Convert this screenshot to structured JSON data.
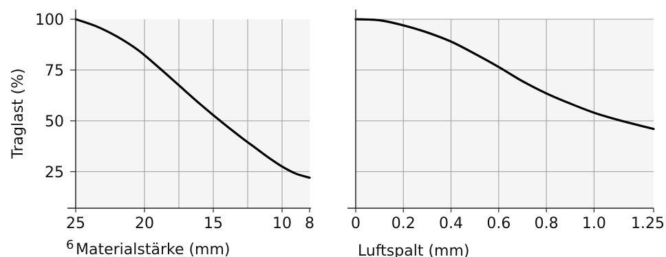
{
  "colors": {
    "plot_bg": "#f5f5f5",
    "grid": "#9a9a9a",
    "axis": "#222222",
    "curve": "#000000",
    "text": "#111111"
  },
  "ylabel": "Traglast (%)",
  "stray_mark": "6",
  "chart_data": [
    {
      "type": "line",
      "title": "",
      "xlabel": "Materialstärke (mm)",
      "ylabel": "Traglast (%)",
      "x_reversed": true,
      "xlim": [
        25,
        8
      ],
      "ylim": [
        7,
        100
      ],
      "xticks": [
        25,
        20,
        15,
        10,
        8
      ],
      "xtick_labels": [
        "25",
        "20",
        "15",
        "10",
        "8"
      ],
      "yticks": [
        25,
        50,
        75,
        100
      ],
      "ytick_labels": [
        "25",
        "50",
        "75",
        "100"
      ],
      "grid": true,
      "series": [
        {
          "x": [
            25,
            23.5,
            22,
            20.5,
            19,
            17.5,
            16,
            14.5,
            13,
            12,
            11,
            10,
            9,
            8
          ],
          "y": [
            100,
            96.5,
            91.5,
            85,
            76.5,
            67.5,
            58.5,
            50,
            42,
            37,
            32,
            27.5,
            24,
            22
          ]
        }
      ]
    },
    {
      "type": "line",
      "title": "",
      "xlabel": "Luftspalt (mm)",
      "ylabel": "",
      "xlim": [
        0,
        1.25
      ],
      "ylim": [
        7,
        100
      ],
      "xticks": [
        0,
        0.2,
        0.4,
        0.6,
        0.8,
        1.0,
        1.25
      ],
      "xtick_labels": [
        "0",
        "0.2",
        "0.4",
        "0.6",
        "0.8",
        "1.0",
        "1.25"
      ],
      "yticks": [
        25,
        50,
        75,
        100
      ],
      "grid": true,
      "series": [
        {
          "x": [
            0,
            0.1,
            0.2,
            0.3,
            0.4,
            0.5,
            0.6,
            0.7,
            0.8,
            0.9,
            1.0,
            1.1,
            1.25
          ],
          "y": [
            100,
            99.5,
            97,
            93.5,
            89,
            83,
            76.5,
            69.5,
            63.5,
            58.5,
            54,
            50.5,
            46
          ]
        }
      ]
    }
  ]
}
